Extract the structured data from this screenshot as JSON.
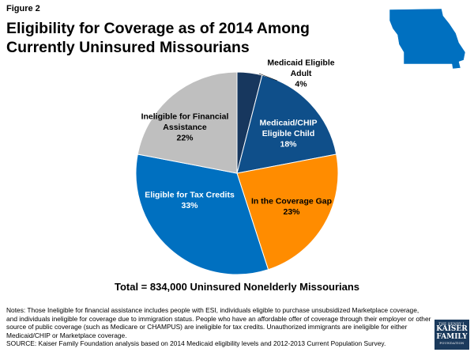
{
  "figure_label": "Figure 2",
  "title": "Eligibility for Coverage as of 2014 Among Currently Uninsured Missourians",
  "chart_data": {
    "type": "pie",
    "title": "Eligibility for Coverage as of 2014 Among Currently Uninsured Missourians",
    "start_angle_deg": 0,
    "direction": "clockwise",
    "slices": [
      {
        "label": [
          "Medicaid Eligible",
          "Adult"
        ],
        "value": 4,
        "value_label": "4%",
        "color": "#17375e",
        "text_color": "#000000",
        "label_outside": true
      },
      {
        "label": [
          "Medicaid/CHIP",
          "Eligible Child"
        ],
        "value": 18,
        "value_label": "18%",
        "color": "#0f4f8a",
        "text_color": "#ffffff"
      },
      {
        "label": [
          "In the Coverage Gap"
        ],
        "value": 23,
        "value_label": "23%",
        "color": "#ff8c00",
        "text_color": "#000000"
      },
      {
        "label": [
          "Eligible for Tax Credits"
        ],
        "value": 33,
        "value_label": "33%",
        "color": "#0070c0",
        "text_color": "#ffffff"
      },
      {
        "label": [
          "Ineligible for Financial",
          "Assistance"
        ],
        "value": 22,
        "value_label": "22%",
        "color": "#bfbfbf",
        "text_color": "#000000"
      }
    ]
  },
  "total_label": "Total = 834,000 Uninsured Nonelderly Missourians",
  "notes": "Notes: Those Ineligible for financial assistance includes people with ESI, individuals eligible to purchase unsubsidized Marketplace coverage, and individuals ineligible for coverage due to immigration status. People who have an affordable offer of coverage through their employer or other source of public coverage (such as Medicare or CHAMPUS) are ineligible for tax credits. Unauthorized immigrants are ineligible for either Medicaid/CHIP or Marketplace coverage.",
  "source": "SOURCE: Kaiser Family Foundation analysis based on 2014 Medicaid eligibility levels and 2012-2013 Current Population Survey.",
  "logo": {
    "line1": "THE HENRY J.",
    "line2": "KAISER",
    "line3": "FAMILY",
    "line4": "FOUNDATION"
  },
  "colors": {
    "state_map": "#0070c0",
    "logo_bg": "#1b3a5c"
  }
}
